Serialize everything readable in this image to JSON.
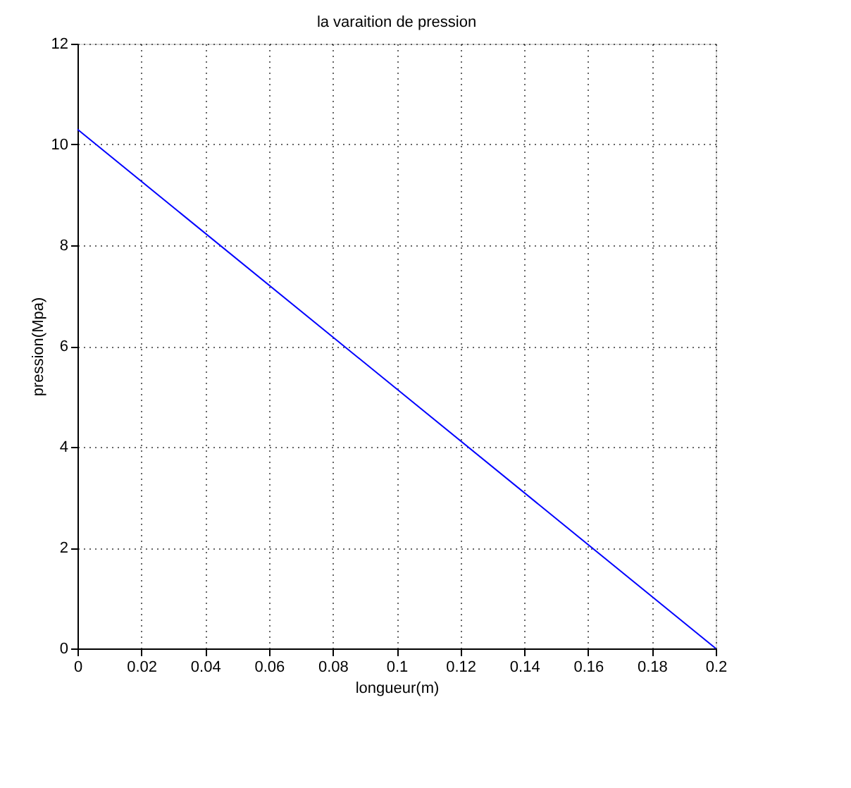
{
  "chart_data": {
    "type": "line",
    "title": "la varaition de pression",
    "xlabel": "longueur(m)",
    "ylabel": "pression(Mpa)",
    "x": [
      0,
      0.2
    ],
    "series": [
      {
        "color": "#0000ff",
        "values": [
          10.3,
          0
        ]
      }
    ],
    "xlim": [
      0,
      0.2
    ],
    "xticks": [
      0,
      0.02,
      0.04,
      0.06,
      0.08,
      0.1,
      0.12,
      0.14,
      0.16,
      0.18,
      0.2
    ],
    "ylim": [
      0,
      12
    ],
    "yticks": [
      0,
      2,
      4,
      6,
      8,
      10,
      12
    ],
    "grid": true,
    "marker": "none",
    "line_style": "solid"
  }
}
